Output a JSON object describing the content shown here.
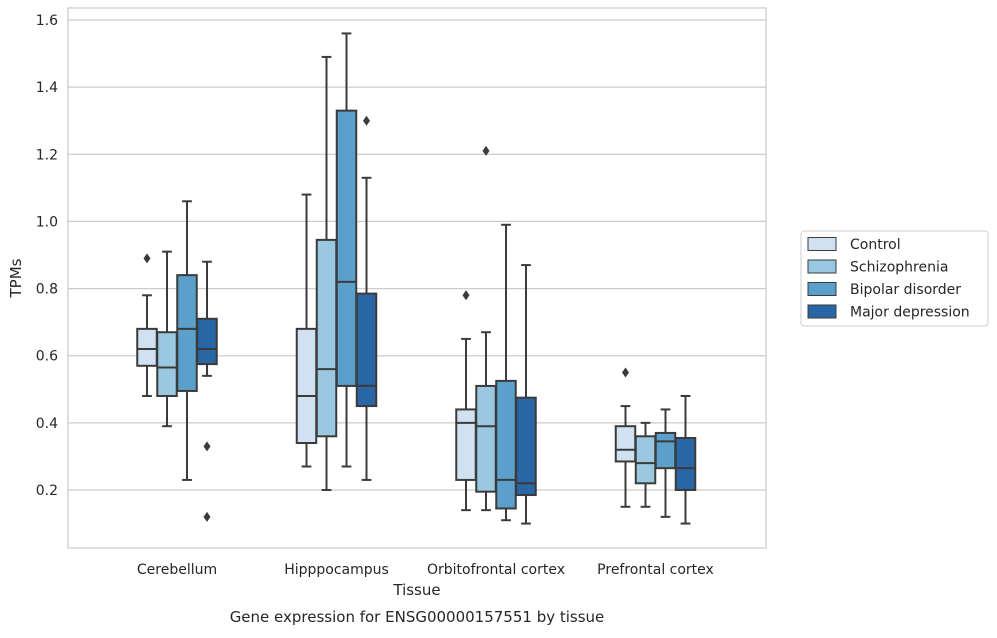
{
  "chart_data": {
    "type": "box",
    "title": "Gene expression for ENSG00000157551 by tissue",
    "xlabel": "Tissue",
    "ylabel": "TPMs",
    "ylim": [
      0.03,
      1.64
    ],
    "yticks": [
      "0.2",
      "0.4",
      "0.6",
      "0.8",
      "1.0",
      "1.2",
      "1.4",
      "1.6"
    ],
    "ytick_values": [
      0.2,
      0.4,
      0.6,
      0.8,
      1.0,
      1.2,
      1.4,
      1.6
    ],
    "grid": "horizontal",
    "legend_position": "right",
    "categories": [
      "Cerebellum",
      "Hipppocampus",
      "Orbitofrontal cortex",
      "Prefrontal cortex"
    ],
    "series": [
      {
        "name": "Control",
        "color": "#d0e1f2",
        "boxes": [
          {
            "min": 0.48,
            "q1": 0.57,
            "median": 0.62,
            "q3": 0.68,
            "max": 0.78,
            "outliers": [
              0.89
            ]
          },
          {
            "min": 0.27,
            "q1": 0.34,
            "median": 0.48,
            "q3": 0.68,
            "max": 1.08,
            "outliers": []
          },
          {
            "min": 0.14,
            "q1": 0.23,
            "median": 0.4,
            "q3": 0.44,
            "max": 0.65,
            "outliers": [
              0.78
            ]
          },
          {
            "min": 0.15,
            "q1": 0.285,
            "median": 0.32,
            "q3": 0.39,
            "max": 0.45,
            "outliers": [
              0.55
            ]
          }
        ]
      },
      {
        "name": "Schizophrenia",
        "color": "#9ac8e0",
        "boxes": [
          {
            "min": 0.39,
            "q1": 0.48,
            "median": 0.565,
            "q3": 0.67,
            "max": 0.91,
            "outliers": []
          },
          {
            "min": 0.2,
            "q1": 0.36,
            "median": 0.56,
            "q3": 0.945,
            "max": 1.49,
            "outliers": []
          },
          {
            "min": 0.14,
            "q1": 0.195,
            "median": 0.39,
            "q3": 0.51,
            "max": 0.67,
            "outliers": [
              1.21
            ]
          },
          {
            "min": 0.15,
            "q1": 0.22,
            "median": 0.28,
            "q3": 0.36,
            "max": 0.4,
            "outliers": []
          }
        ]
      },
      {
        "name": "Bipolar disorder",
        "color": "#5b9fcb",
        "boxes": [
          {
            "min": 0.23,
            "q1": 0.495,
            "median": 0.68,
            "q3": 0.84,
            "max": 1.06,
            "outliers": []
          },
          {
            "min": 0.27,
            "q1": 0.51,
            "median": 0.82,
            "q3": 1.33,
            "max": 1.56,
            "outliers": []
          },
          {
            "min": 0.11,
            "q1": 0.145,
            "median": 0.23,
            "q3": 0.525,
            "max": 0.99,
            "outliers": []
          },
          {
            "min": 0.12,
            "q1": 0.265,
            "median": 0.345,
            "q3": 0.37,
            "max": 0.44,
            "outliers": []
          }
        ]
      },
      {
        "name": "Major depression",
        "color": "#2866a6",
        "boxes": [
          {
            "min": 0.54,
            "q1": 0.575,
            "median": 0.62,
            "q3": 0.71,
            "max": 0.88,
            "outliers": [
              0.33,
              0.12
            ]
          },
          {
            "min": 0.23,
            "q1": 0.45,
            "median": 0.51,
            "q3": 0.785,
            "max": 1.13,
            "outliers": [
              1.3
            ]
          },
          {
            "min": 0.1,
            "q1": 0.185,
            "median": 0.22,
            "q3": 0.475,
            "max": 0.87,
            "outliers": []
          },
          {
            "min": 0.1,
            "q1": 0.2,
            "median": 0.265,
            "q3": 0.355,
            "max": 0.48,
            "outliers": []
          }
        ]
      }
    ]
  }
}
